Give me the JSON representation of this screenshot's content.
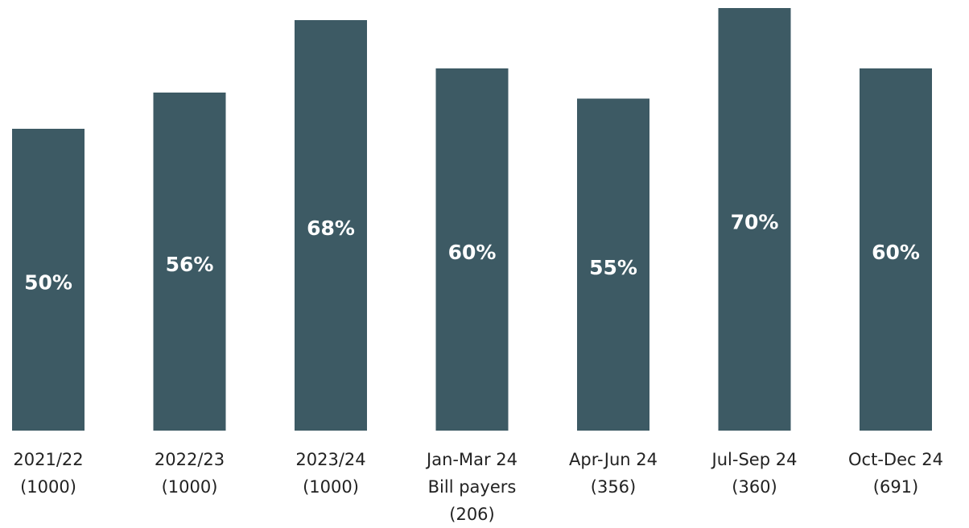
{
  "chart_data": {
    "type": "bar",
    "categories": [
      [
        "2021/22",
        "(1000)"
      ],
      [
        "2022/23",
        "(1000)"
      ],
      [
        "2023/24",
        "(1000)"
      ],
      [
        "Jan-Mar 24",
        "Bill payers",
        "(206)"
      ],
      [
        "Apr-Jun 24",
        "(356)"
      ],
      [
        "Jul-Sep 24",
        "(360)"
      ],
      [
        "Oct-Dec 24",
        "(691)"
      ]
    ],
    "values": [
      50,
      56,
      68,
      60,
      55,
      70,
      60
    ],
    "value_labels": [
      "50%",
      "56%",
      "68%",
      "60%",
      "55%",
      "70%",
      "60%"
    ],
    "color": "#3d5a64",
    "ylim": [
      0,
      70
    ]
  }
}
